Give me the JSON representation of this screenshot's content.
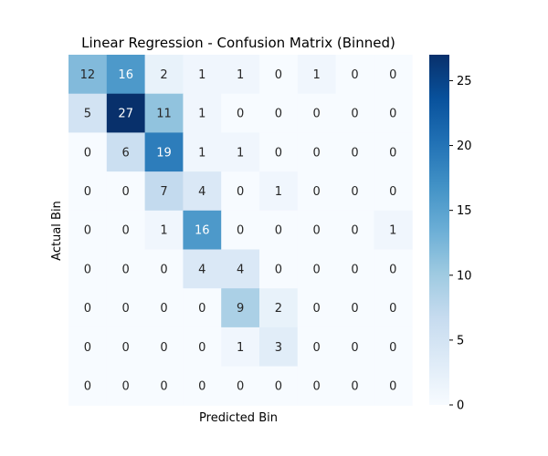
{
  "chart_data": {
    "type": "heatmap",
    "title": "Linear Regression - Confusion Matrix (Binned)",
    "xlabel": "Predicted Bin",
    "ylabel": "Actual Bin",
    "rows": 9,
    "cols": 9,
    "matrix": [
      [
        12,
        16,
        2,
        1,
        1,
        0,
        1,
        0,
        0
      ],
      [
        5,
        27,
        11,
        1,
        0,
        0,
        0,
        0,
        0
      ],
      [
        0,
        6,
        19,
        1,
        1,
        0,
        0,
        0,
        0
      ],
      [
        0,
        0,
        7,
        4,
        0,
        1,
        0,
        0,
        0
      ],
      [
        0,
        0,
        1,
        16,
        0,
        0,
        0,
        0,
        1
      ],
      [
        0,
        0,
        0,
        4,
        4,
        0,
        0,
        0,
        0
      ],
      [
        0,
        0,
        0,
        0,
        9,
        2,
        0,
        0,
        0
      ],
      [
        0,
        0,
        0,
        0,
        1,
        3,
        0,
        0,
        0
      ],
      [
        0,
        0,
        0,
        0,
        0,
        0,
        0,
        0,
        0
      ]
    ],
    "colorbar": {
      "min": 0,
      "max": 27,
      "ticks": [
        0,
        5,
        10,
        15,
        20,
        25
      ],
      "colormap": "Blues"
    },
    "show_tick_labels": false
  }
}
